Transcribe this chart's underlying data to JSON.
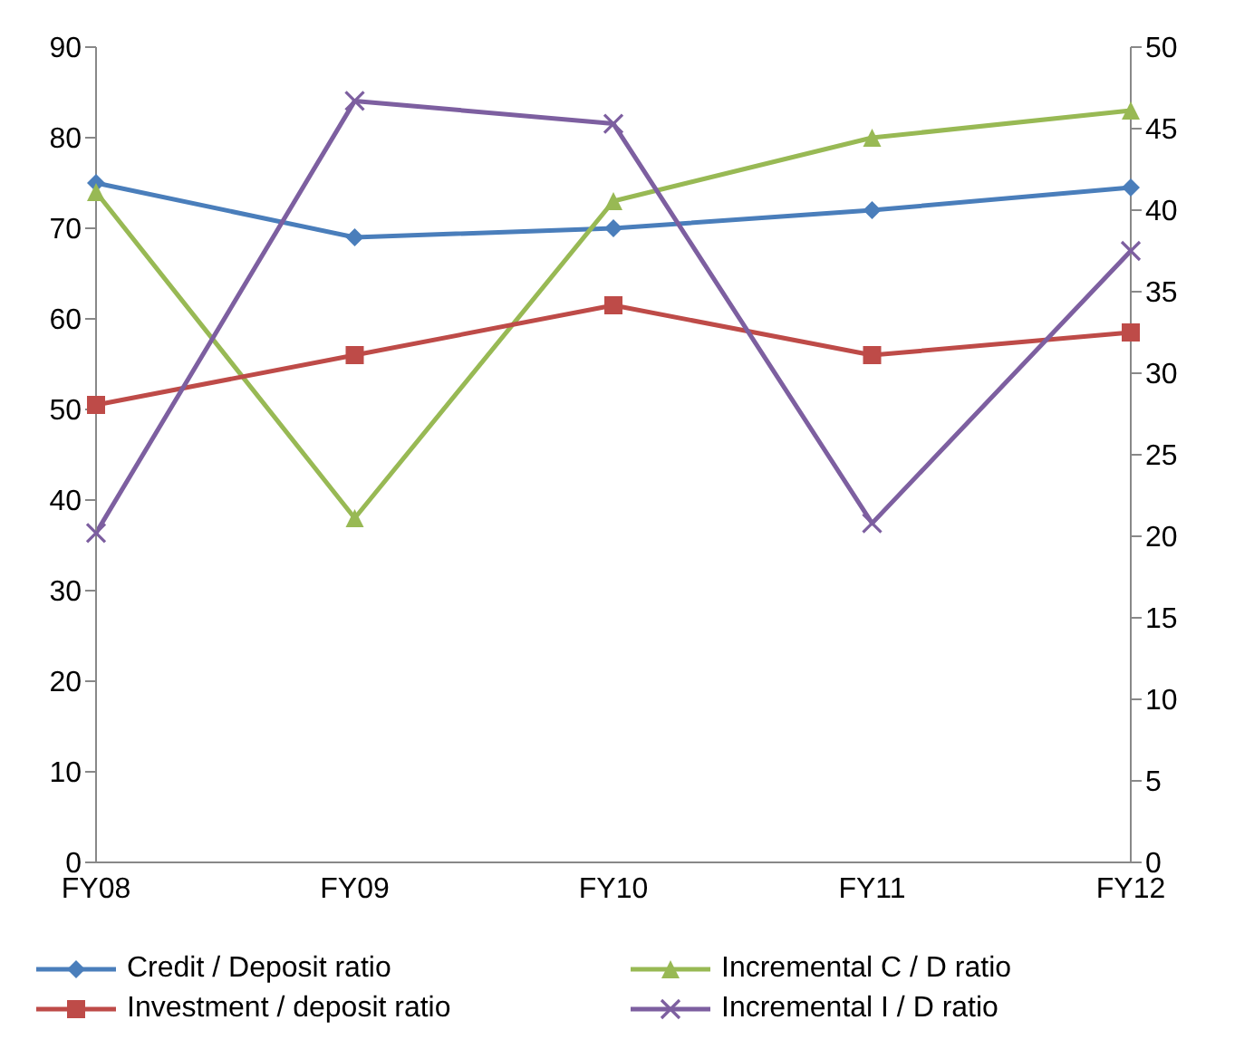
{
  "chart_data": {
    "type": "line",
    "categories": [
      "FY08",
      "FY09",
      "FY10",
      "FY11",
      "FY12"
    ],
    "series": [
      {
        "name": "Credit / Deposit ratio",
        "color": "#4a7ebb",
        "marker": "diamond",
        "values": [
          75,
          69,
          70,
          72,
          74.5
        ]
      },
      {
        "name": "Incremental C / D ratio",
        "color": "#98b954",
        "marker": "triangle",
        "values": [
          74,
          38,
          73,
          80,
          83
        ]
      },
      {
        "name": "Investment / deposit ratio",
        "color": "#be4b48",
        "marker": "square",
        "values": [
          50.5,
          56,
          61.5,
          56,
          58.5
        ]
      },
      {
        "name": "Incremental I / D ratio",
        "color": "#7d5fa0",
        "marker": "cross",
        "axis": "y2",
        "values": [
          20.2,
          46.7,
          45.3,
          20.8,
          37.5
        ]
      }
    ],
    "ylim": [
      0,
      90
    ],
    "yticks": [
      0,
      10,
      20,
      30,
      40,
      50,
      60,
      70,
      80,
      90
    ],
    "y2lim": [
      0,
      50
    ],
    "y2ticks": [
      0,
      5,
      10,
      15,
      20,
      25,
      30,
      35,
      40,
      45,
      50
    ],
    "grid": false,
    "legend": "bottom"
  }
}
